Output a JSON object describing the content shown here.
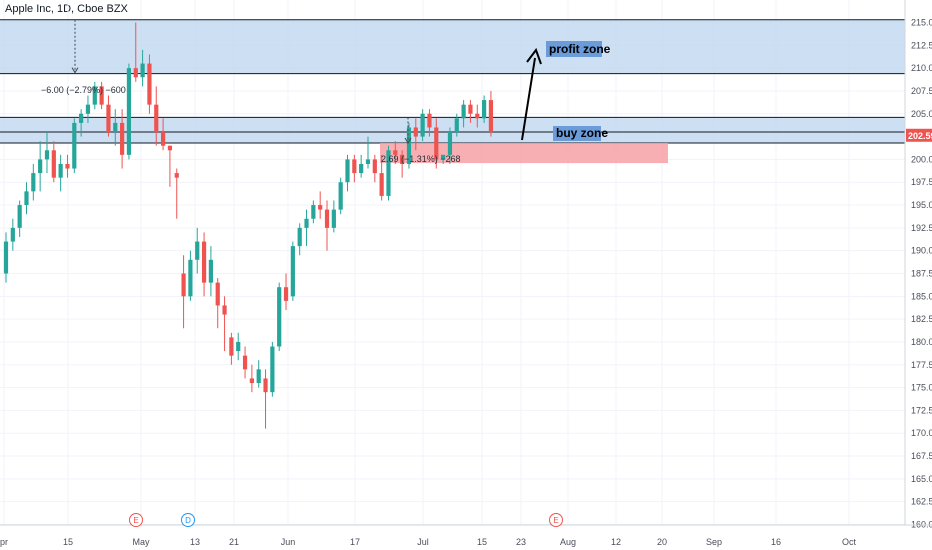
{
  "header": {
    "symbol_title": "Apple Inc, 1D, Cboe BZX"
  },
  "colors": {
    "up": "#26a69a",
    "down": "#ef5350",
    "zone_fill": "#bcd6ef",
    "buy_fill": "#f7a1a6",
    "label_bg": "#6b9bd8"
  },
  "chart_data": {
    "type": "candlestick",
    "title": "Apple Inc, 1D, Cboe BZX",
    "ylim": [
      160,
      216
    ],
    "y_ticks": [
      "160.00",
      "162.50",
      "165.00",
      "167.50",
      "170.00",
      "172.50",
      "175.00",
      "177.50",
      "180.00",
      "182.50",
      "185.00",
      "187.50",
      "190.00",
      "192.50",
      "195.00",
      "197.50",
      "200.00",
      "205.00",
      "207.50",
      "210.00",
      "212.50",
      "215.00"
    ],
    "x_ticks": [
      "pr",
      "15",
      "May",
      "13",
      "21",
      "Jun",
      "17",
      "Jul",
      "15",
      "23",
      "Aug",
      "12",
      "20",
      "Sep",
      "16",
      "Oct"
    ],
    "last_price": "202.59",
    "candles": [
      [
        187.5,
        192.0,
        186.5,
        191.0
      ],
      [
        191.0,
        193.5,
        190.0,
        192.5
      ],
      [
        192.5,
        195.5,
        191.5,
        195.0
      ],
      [
        195.0,
        197.5,
        194.0,
        196.5
      ],
      [
        196.5,
        199.5,
        195.5,
        198.5
      ],
      [
        198.5,
        202.0,
        196.5,
        200.0
      ],
      [
        200.0,
        203.0,
        198.5,
        201.0
      ],
      [
        201.0,
        202.0,
        197.5,
        198.0
      ],
      [
        198.0,
        200.5,
        196.5,
        199.5
      ],
      [
        199.5,
        200.5,
        198.0,
        199.0
      ],
      [
        199.0,
        204.5,
        198.5,
        204.0
      ],
      [
        204.0,
        205.5,
        202.5,
        205.0
      ],
      [
        205.0,
        207.0,
        204.0,
        206.0
      ],
      [
        206.0,
        208.5,
        205.5,
        208.0
      ],
      [
        208.0,
        208.5,
        205.5,
        206.0
      ],
      [
        206.0,
        207.0,
        202.5,
        203.0
      ],
      [
        203.0,
        205.5,
        201.5,
        204.0
      ],
      [
        204.0,
        205.5,
        199.0,
        200.5
      ],
      [
        200.5,
        210.5,
        200.0,
        210.0
      ],
      [
        210.0,
        215.0,
        208.5,
        209.0
      ],
      [
        209.0,
        212.0,
        208.0,
        210.5
      ],
      [
        210.5,
        211.5,
        205.0,
        206.0
      ],
      [
        206.0,
        208.0,
        201.5,
        203.0
      ],
      [
        203.0,
        204.5,
        201.0,
        201.5
      ],
      [
        201.5,
        201.5,
        197.0,
        201.0
      ],
      [
        198.5,
        199.0,
        193.5,
        198.0
      ],
      [
        187.5,
        189.5,
        181.5,
        185.0
      ],
      [
        185.0,
        190.0,
        184.5,
        189.0
      ],
      [
        189.0,
        192.5,
        187.5,
        191.0
      ],
      [
        191.0,
        192.0,
        185.0,
        186.5
      ],
      [
        186.5,
        190.5,
        185.0,
        189.0
      ],
      [
        186.5,
        187.0,
        181.5,
        184.0
      ],
      [
        184.0,
        185.0,
        179.0,
        183.0
      ],
      [
        180.5,
        181.0,
        177.5,
        178.5
      ],
      [
        179.0,
        181.0,
        178.0,
        180.0
      ],
      [
        178.5,
        179.5,
        176.0,
        177.0
      ],
      [
        176.0,
        177.5,
        174.5,
        175.5
      ],
      [
        175.5,
        178.0,
        175.0,
        177.0
      ],
      [
        176.0,
        177.0,
        170.5,
        174.5
      ],
      [
        174.5,
        180.0,
        174.0,
        179.5
      ],
      [
        179.5,
        186.5,
        179.0,
        186.0
      ],
      [
        186.0,
        187.5,
        183.5,
        184.5
      ],
      [
        185.0,
        191.0,
        184.5,
        190.5
      ],
      [
        190.5,
        193.0,
        189.5,
        192.5
      ],
      [
        192.5,
        194.5,
        190.5,
        193.5
      ],
      [
        193.5,
        195.5,
        193.0,
        195.0
      ],
      [
        195.0,
        196.5,
        193.5,
        194.5
      ],
      [
        194.5,
        195.5,
        190.0,
        192.5
      ],
      [
        192.5,
        195.5,
        192.0,
        194.5
      ],
      [
        194.5,
        198.0,
        194.0,
        197.5
      ],
      [
        197.5,
        200.5,
        196.5,
        200.0
      ],
      [
        200.0,
        200.5,
        197.5,
        198.5
      ],
      [
        198.5,
        200.5,
        198.0,
        199.5
      ],
      [
        199.5,
        202.5,
        199.0,
        200.0
      ],
      [
        200.0,
        200.5,
        197.5,
        198.5
      ],
      [
        198.5,
        200.5,
        195.5,
        196.0
      ],
      [
        196.0,
        201.5,
        195.5,
        201.0
      ],
      [
        201.0,
        202.0,
        199.5,
        200.5
      ],
      [
        200.5,
        201.0,
        198.0,
        199.5
      ],
      [
        199.5,
        204.0,
        199.0,
        203.5
      ],
      [
        203.5,
        204.5,
        201.0,
        202.5
      ],
      [
        202.5,
        205.5,
        202.0,
        205.0
      ],
      [
        205.0,
        205.5,
        202.5,
        203.5
      ],
      [
        203.5,
        204.5,
        199.0,
        200.0
      ],
      [
        200.0,
        200.5,
        199.5,
        200.5
      ],
      [
        200.5,
        203.5,
        199.5,
        203.0
      ],
      [
        203.0,
        205.0,
        202.5,
        204.5
      ],
      [
        204.5,
        206.5,
        203.5,
        206.0
      ],
      [
        206.0,
        206.5,
        204.0,
        205.0
      ],
      [
        205.0,
        206.0,
        203.5,
        204.5
      ],
      [
        204.5,
        207.0,
        204.0,
        206.5
      ],
      [
        206.5,
        207.5,
        202.5,
        203.0
      ]
    ],
    "annotations": {
      "profit_zone": {
        "label": "profit zone",
        "y_range": [
          209.4,
          215.3
        ]
      },
      "buy_zone": {
        "label": "buy zone",
        "y_range": [
          201.8,
          204.6
        ],
        "line": 203.0
      },
      "buy_rect": {
        "y_range": [
          199.6,
          201.8
        ]
      },
      "measure_upper": {
        "text": "−6.00 (−2.79%) −600"
      },
      "measure_lower": {
        "text": "2.69 (−1.31%) −268"
      }
    },
    "events": [
      {
        "label": "E",
        "type": "earnings"
      },
      {
        "label": "D",
        "type": "dividend"
      },
      {
        "label": "E",
        "type": "earnings"
      }
    ]
  }
}
